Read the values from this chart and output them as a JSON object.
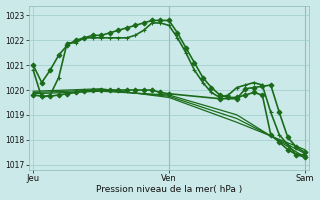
{
  "title": "Pression niveau de la mer( hPa )",
  "bg_color": "#cce9e9",
  "grid_color": "#99cccc",
  "line_color": "#1a6b1a",
  "ylim": [
    1016.8,
    1023.4
  ],
  "yticks": [
    1017,
    1018,
    1019,
    1020,
    1021,
    1022,
    1023
  ],
  "xtick_labels": [
    "Jeu",
    "Ven",
    "Sam"
  ],
  "xtick_positions": [
    0,
    16,
    32
  ],
  "series": [
    {
      "x": [
        0,
        1,
        2,
        3,
        4,
        5,
        6,
        7,
        8,
        9,
        10,
        11,
        12,
        13,
        14,
        15,
        16,
        17,
        18,
        19,
        20,
        21,
        22,
        23,
        24,
        25,
        26,
        27,
        28,
        29,
        30,
        31,
        32
      ],
      "y": [
        1020.8,
        1019.7,
        1019.8,
        1020.5,
        1021.9,
        1021.9,
        1022.1,
        1022.1,
        1022.1,
        1022.1,
        1022.1,
        1022.1,
        1022.2,
        1022.4,
        1022.7,
        1022.7,
        1022.6,
        1022.1,
        1021.5,
        1020.8,
        1020.3,
        1019.9,
        1019.7,
        1019.8,
        1020.1,
        1020.2,
        1020.3,
        1020.2,
        1019.1,
        1018.2,
        1017.8,
        1017.4,
        1017.4
      ],
      "linewidth": 1.2,
      "marker": "+",
      "markersize": 3.5
    },
    {
      "x": [
        0,
        1,
        2,
        3,
        4,
        5,
        6,
        7,
        8,
        9,
        10,
        11,
        12,
        13,
        14,
        15,
        16,
        17,
        18,
        19,
        20,
        21,
        22,
        23,
        24,
        25,
        26,
        27,
        28,
        29,
        30,
        31,
        32
      ],
      "y": [
        1021.0,
        1020.3,
        1020.8,
        1021.4,
        1021.8,
        1022.0,
        1022.1,
        1022.2,
        1022.2,
        1022.3,
        1022.4,
        1022.5,
        1022.6,
        1022.7,
        1022.8,
        1022.8,
        1022.8,
        1022.3,
        1021.7,
        1021.1,
        1020.5,
        1020.1,
        1019.8,
        1019.7,
        1019.7,
        1019.8,
        1019.9,
        1019.8,
        1018.2,
        1017.9,
        1017.6,
        1017.4,
        1017.3
      ],
      "linewidth": 1.2,
      "marker": "D",
      "markersize": 2.5
    },
    {
      "x": [
        0,
        8,
        16,
        24,
        32
      ],
      "y": [
        1019.85,
        1019.95,
        1019.8,
        1019.0,
        1017.3
      ],
      "linewidth": 0.9,
      "marker": null,
      "markersize": 0
    },
    {
      "x": [
        0,
        8,
        16,
        24,
        32
      ],
      "y": [
        1019.9,
        1020.0,
        1019.75,
        1018.85,
        1017.45
      ],
      "linewidth": 0.9,
      "marker": null,
      "markersize": 0
    },
    {
      "x": [
        0,
        8,
        16,
        24,
        32
      ],
      "y": [
        1019.95,
        1020.05,
        1019.7,
        1018.7,
        1017.6
      ],
      "linewidth": 0.9,
      "marker": null,
      "markersize": 0
    },
    {
      "x": [
        0,
        1,
        2,
        3,
        4,
        5,
        6,
        7,
        8,
        9,
        10,
        11,
        12,
        13,
        14,
        15,
        16,
        22,
        24,
        25,
        26,
        27,
        28,
        29,
        30,
        31,
        32
      ],
      "y": [
        1019.8,
        1019.75,
        1019.75,
        1019.8,
        1019.85,
        1019.9,
        1019.95,
        1020.0,
        1020.0,
        1020.0,
        1020.0,
        1020.0,
        1020.0,
        1020.0,
        1020.0,
        1019.9,
        1019.85,
        1019.65,
        1019.65,
        1020.05,
        1020.1,
        1020.15,
        1020.2,
        1019.1,
        1018.1,
        1017.7,
        1017.5
      ],
      "linewidth": 1.2,
      "marker": "D",
      "markersize": 2.5
    }
  ]
}
